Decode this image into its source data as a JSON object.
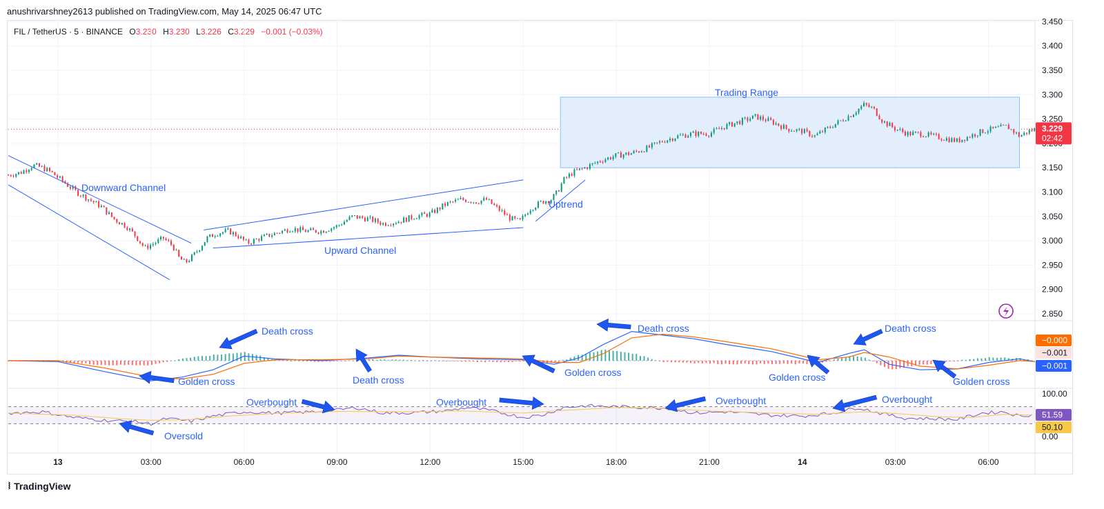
{
  "header": {
    "published_line": "anushrivarshney2613 published on TradingView.com, May 14, 2025 06:47 UTC"
  },
  "symbol": {
    "name": "FIL / TetherUS · 5 · BINANCE",
    "o_label": "O",
    "o": "3.230",
    "h_label": "H",
    "h": "3.230",
    "l_label": "L",
    "l": "3.226",
    "c_label": "C",
    "c": "3.229",
    "change": "−0.001 (−0.03%)"
  },
  "price_tag": {
    "price": "3.229",
    "countdown": "02:42"
  },
  "macd_tags": [
    "−0.000",
    "−0.001",
    "−0.001"
  ],
  "rsi_tags": [
    "51.59",
    "50.10"
  ],
  "footer": {
    "brand": "TradingView"
  },
  "colors": {
    "up": "#089981",
    "down": "#f23645",
    "annotation": "#2962ff",
    "range_fill": "#e3eefc"
  },
  "chart_data": [
    {
      "type": "candlestick",
      "title": "",
      "y_ticks": [
        "3.450",
        "3.400",
        "3.350",
        "3.300",
        "3.250",
        "3.200",
        "3.150",
        "3.100",
        "3.050",
        "3.000",
        "2.950",
        "2.900",
        "2.850"
      ],
      "ylim": [
        2.84,
        3.452
      ],
      "x_ticks": [
        "13",
        "03:00",
        "06:00",
        "09:00",
        "12:00",
        "15:00",
        "18:00",
        "21:00",
        "14",
        "03:00",
        "06:00"
      ],
      "x_tick_hours": [
        0,
        3,
        6,
        9,
        12,
        15,
        18,
        21,
        24,
        27,
        30
      ],
      "x_range_hours": [
        -1.6,
        31.5
      ],
      "close_series": [
        [
          -1.6,
          3.135
        ],
        [
          -1.2,
          3.14
        ],
        [
          -0.8,
          3.155
        ],
        [
          -0.5,
          3.15
        ],
        [
          -0.2,
          3.14
        ],
        [
          0.2,
          3.12
        ],
        [
          0.6,
          3.1
        ],
        [
          1.0,
          3.085
        ],
        [
          1.4,
          3.07
        ],
        [
          1.8,
          3.045
        ],
        [
          2.2,
          3.03
        ],
        [
          2.5,
          3.01
        ],
        [
          2.8,
          2.985
        ],
        [
          3.1,
          2.995
        ],
        [
          3.4,
          3.005
        ],
        [
          3.7,
          2.99
        ],
        [
          3.9,
          2.965
        ],
        [
          4.1,
          2.955
        ],
        [
          4.3,
          2.965
        ],
        [
          4.5,
          2.98
        ],
        [
          4.8,
          3.005
        ],
        [
          5.1,
          3.015
        ],
        [
          5.5,
          3.02
        ],
        [
          5.8,
          3.01
        ],
        [
          6.1,
          2.995
        ],
        [
          6.5,
          3.005
        ],
        [
          7.0,
          3.015
        ],
        [
          7.5,
          3.025
        ],
        [
          8.0,
          3.02
        ],
        [
          8.5,
          3.02
        ],
        [
          9.0,
          3.03
        ],
        [
          9.5,
          3.05
        ],
        [
          10.0,
          3.045
        ],
        [
          10.5,
          3.035
        ],
        [
          11.0,
          3.04
        ],
        [
          11.5,
          3.05
        ],
        [
          12.0,
          3.055
        ],
        [
          12.5,
          3.075
        ],
        [
          13.0,
          3.085
        ],
        [
          13.5,
          3.08
        ],
        [
          13.8,
          3.085
        ],
        [
          14.2,
          3.065
        ],
        [
          14.6,
          3.045
        ],
        [
          14.9,
          3.04
        ],
        [
          15.2,
          3.065
        ],
        [
          15.6,
          3.08
        ],
        [
          15.9,
          3.085
        ],
        [
          16.1,
          3.1
        ],
        [
          16.3,
          3.125
        ],
        [
          16.6,
          3.14
        ],
        [
          17.0,
          3.15
        ],
        [
          17.5,
          3.165
        ],
        [
          18.0,
          3.175
        ],
        [
          18.5,
          3.18
        ],
        [
          19.0,
          3.19
        ],
        [
          19.5,
          3.205
        ],
        [
          20.0,
          3.215
        ],
        [
          20.5,
          3.22
        ],
        [
          21.0,
          3.22
        ],
        [
          21.5,
          3.235
        ],
        [
          22.0,
          3.245
        ],
        [
          22.5,
          3.255
        ],
        [
          23.0,
          3.245
        ],
        [
          23.5,
          3.23
        ],
        [
          24.0,
          3.225
        ],
        [
          24.4,
          3.215
        ],
        [
          24.8,
          3.23
        ],
        [
          25.2,
          3.245
        ],
        [
          25.6,
          3.26
        ],
        [
          26.0,
          3.28
        ],
        [
          26.3,
          3.27
        ],
        [
          26.6,
          3.245
        ],
        [
          27.0,
          3.23
        ],
        [
          27.4,
          3.22
        ],
        [
          27.8,
          3.22
        ],
        [
          28.2,
          3.215
        ],
        [
          28.6,
          3.21
        ],
        [
          29.0,
          3.205
        ],
        [
          29.4,
          3.215
        ],
        [
          29.8,
          3.225
        ],
        [
          30.2,
          3.23
        ],
        [
          30.6,
          3.235
        ],
        [
          31.0,
          3.215
        ],
        [
          31.3,
          3.225
        ],
        [
          31.5,
          3.229
        ]
      ],
      "current_price": 3.229,
      "annotations": {
        "downward_channel": {
          "label": "Downward Channel",
          "upper": [
            [
              -1.6,
              3.175
            ],
            [
              2.5,
              3.055
            ]
          ],
          "upper_end": [
            [
              -1.6,
              3.175
            ],
            [
              4.3,
              2.995
            ]
          ],
          "lower": [
            [
              -1.6,
              3.115
            ],
            [
              3.6,
              2.92
            ]
          ]
        },
        "upward_channel": {
          "label": "Upward Channel",
          "upper": [
            [
              4.7,
              3.022
            ],
            [
              15.0,
              3.125
            ]
          ],
          "lower": [
            [
              5.0,
              2.985
            ],
            [
              15.0,
              3.027
            ]
          ]
        },
        "uptrend": {
          "label": "Uptrend",
          "line": [
            [
              15.4,
              3.04
            ],
            [
              17.0,
              3.125
            ]
          ]
        },
        "trading_range": {
          "label": "Trading Range",
          "top": 3.295,
          "bottom": 3.15,
          "x": [
            16.2,
            31.0
          ]
        }
      }
    },
    {
      "type": "line",
      "title": "",
      "x_range_hours": [
        -1.6,
        31.5
      ],
      "series": [
        {
          "color": "#2962ff",
          "values": [
            [
              -1.6,
              0.0
            ],
            [
              0,
              -0.001
            ],
            [
              1.5,
              -0.012
            ],
            [
              3.0,
              -0.022
            ],
            [
              4.0,
              -0.018
            ],
            [
              5.0,
              -0.01
            ],
            [
              6.0,
              0.005
            ],
            [
              7.0,
              0.002
            ],
            [
              8.5,
              0.0
            ],
            [
              10.0,
              0.003
            ],
            [
              11.0,
              0.006
            ],
            [
              12.0,
              0.004
            ],
            [
              13.5,
              0.002
            ],
            [
              15.0,
              0.001
            ],
            [
              16.0,
              -0.004
            ],
            [
              16.8,
              0.003
            ],
            [
              17.6,
              0.018
            ],
            [
              18.5,
              0.032
            ],
            [
              19.5,
              0.028
            ],
            [
              20.5,
              0.024
            ],
            [
              21.5,
              0.018
            ],
            [
              23.0,
              0.01
            ],
            [
              24.5,
              -0.002
            ],
            [
              25.5,
              0.008
            ],
            [
              26.0,
              0.012
            ],
            [
              26.8,
              -0.004
            ],
            [
              27.8,
              -0.01
            ],
            [
              29.0,
              -0.009
            ],
            [
              30.0,
              -0.002
            ],
            [
              31.0,
              0.002
            ],
            [
              31.5,
              -0.001
            ]
          ]
        },
        {
          "color": "#ff6d00",
          "values": [
            [
              -1.6,
              0.0
            ],
            [
              0,
              0.0
            ],
            [
              1.5,
              -0.008
            ],
            [
              3.0,
              -0.018
            ],
            [
              4.0,
              -0.02
            ],
            [
              5.0,
              -0.015
            ],
            [
              6.0,
              -0.003
            ],
            [
              7.0,
              0.001
            ],
            [
              8.5,
              0.001
            ],
            [
              10.0,
              0.002
            ],
            [
              11.0,
              0.005
            ],
            [
              12.0,
              0.004
            ],
            [
              13.5,
              0.003
            ],
            [
              15.0,
              0.002
            ],
            [
              16.0,
              -0.002
            ],
            [
              16.8,
              -0.002
            ],
            [
              17.6,
              0.008
            ],
            [
              18.5,
              0.025
            ],
            [
              19.5,
              0.029
            ],
            [
              20.5,
              0.026
            ],
            [
              21.5,
              0.021
            ],
            [
              23.0,
              0.013
            ],
            [
              24.5,
              0.001
            ],
            [
              25.5,
              0.004
            ],
            [
              26.0,
              0.009
            ],
            [
              26.8,
              0.004
            ],
            [
              27.8,
              -0.006
            ],
            [
              29.0,
              -0.009
            ],
            [
              30.0,
              -0.005
            ],
            [
              31.0,
              0.0
            ],
            [
              31.5,
              -0.001
            ]
          ]
        }
      ],
      "ylim": [
        -0.028,
        0.04
      ],
      "annotations": [
        {
          "label": "Death cross",
          "x": 6.8,
          "y": 0.028
        },
        {
          "label": "Golden cross",
          "x": 5.0,
          "y": -0.035
        },
        {
          "label": "Death cross",
          "x": 10.5,
          "y": -0.035
        },
        {
          "label": "Golden cross",
          "x": 18.0,
          "y": -0.028
        },
        {
          "label": "Death cross",
          "x": 20.5,
          "y": 0.032
        },
        {
          "label": "Golden cross",
          "x": 25.2,
          "y": -0.035
        },
        {
          "label": "Death cross",
          "x": 28.0,
          "y": 0.033
        },
        {
          "label": "Golden cross",
          "x": 31.0,
          "y": -0.038
        }
      ]
    },
    {
      "type": "line",
      "title": "",
      "x_range_hours": [
        -1.6,
        31.5
      ],
      "y_ticks": [
        "100.00",
        "0.00"
      ],
      "ylim": [
        0,
        100
      ],
      "upper_band": 70,
      "lower_band": 30,
      "series": [
        {
          "name": "RSI",
          "color": "#7e57c2",
          "values": [
            [
              -1.6,
              55
            ],
            [
              -0.5,
              58
            ],
            [
              0.5,
              45
            ],
            [
              1.5,
              38
            ],
            [
              2.5,
              35
            ],
            [
              3.0,
              30
            ],
            [
              3.5,
              42
            ],
            [
              4.3,
              36
            ],
            [
              5.0,
              48
            ],
            [
              6.0,
              58
            ],
            [
              7.0,
              55
            ],
            [
              8.0,
              57
            ],
            [
              9.0,
              62
            ],
            [
              9.6,
              68
            ],
            [
              10.5,
              55
            ],
            [
              11.5,
              56
            ],
            [
              12.5,
              60
            ],
            [
              13.2,
              68
            ],
            [
              14.0,
              60
            ],
            [
              15.0,
              45
            ],
            [
              15.6,
              50
            ],
            [
              16.3,
              68
            ],
            [
              17.0,
              72
            ],
            [
              18.0,
              70
            ],
            [
              19.0,
              68
            ],
            [
              19.8,
              66
            ],
            [
              20.5,
              55
            ],
            [
              21.5,
              58
            ],
            [
              23.0,
              50
            ],
            [
              24.0,
              48
            ],
            [
              25.0,
              55
            ],
            [
              25.8,
              68
            ],
            [
              26.5,
              55
            ],
            [
              27.3,
              43
            ],
            [
              28.2,
              42
            ],
            [
              29.0,
              40
            ],
            [
              29.8,
              55
            ],
            [
              30.5,
              58
            ],
            [
              31.0,
              48
            ],
            [
              31.5,
              52
            ]
          ]
        },
        {
          "name": "RSI MA",
          "color": "#f7c948",
          "values": [
            [
              -1.6,
              55
            ],
            [
              0.5,
              50
            ],
            [
              2.0,
              42
            ],
            [
              3.0,
              38
            ],
            [
              4.3,
              40
            ],
            [
              5.5,
              48
            ],
            [
              7.0,
              54
            ],
            [
              9.0,
              59
            ],
            [
              11.0,
              58
            ],
            [
              13.0,
              60
            ],
            [
              15.0,
              55
            ],
            [
              16.5,
              62
            ],
            [
              18.0,
              68
            ],
            [
              19.5,
              66
            ],
            [
              21.0,
              60
            ],
            [
              23.0,
              55
            ],
            [
              24.5,
              52
            ],
            [
              26.0,
              58
            ],
            [
              27.0,
              54
            ],
            [
              28.5,
              46
            ],
            [
              29.5,
              45
            ],
            [
              30.5,
              52
            ],
            [
              31.5,
              50
            ]
          ]
        }
      ],
      "annotations": [
        {
          "label": "Overbought",
          "x": 7.0,
          "y": 96
        },
        {
          "label": "Oversold",
          "x": 4.8,
          "y": 5
        },
        {
          "label": "Overbought",
          "x": 13.0,
          "y": 98
        },
        {
          "label": "Overbought",
          "x": 22.0,
          "y": 98
        },
        {
          "label": "Overbought",
          "x": 28.2,
          "y": 100
        }
      ]
    }
  ]
}
